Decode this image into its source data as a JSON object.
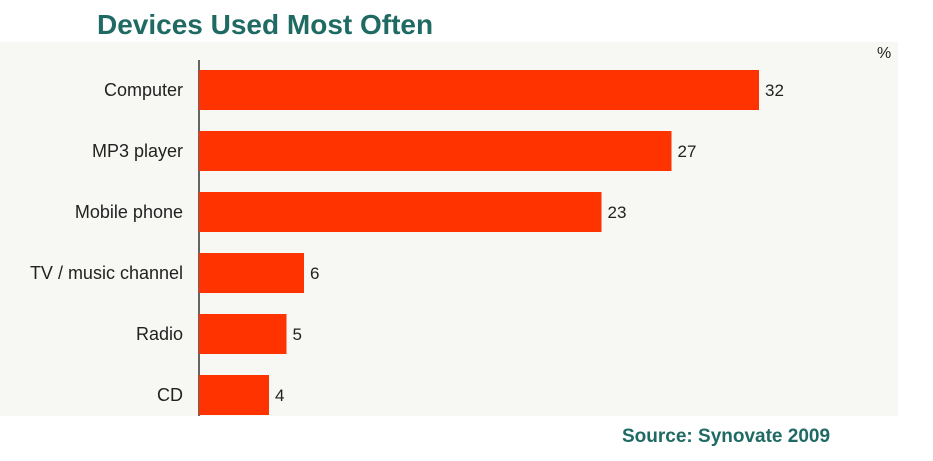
{
  "title": "Devices Used Most Often",
  "unit": "%",
  "source": "Source: Synovate 2009",
  "colors": {
    "bar": "#ff3300",
    "title": "#1f6b63",
    "panel": "#f7f7f4",
    "axis": "#333333",
    "text": "#222222"
  },
  "chart_data": {
    "type": "bar",
    "orientation": "horizontal",
    "title": "Devices Used Most Often",
    "unit": "%",
    "categories": [
      "Computer",
      "MP3 player",
      "Mobile phone",
      "TV / music channel",
      "Radio",
      "CD"
    ],
    "values": [
      32,
      27,
      23,
      6,
      5,
      4
    ],
    "xlim": [
      0,
      35
    ],
    "grid": false,
    "legend": "none",
    "data_labels": true
  }
}
